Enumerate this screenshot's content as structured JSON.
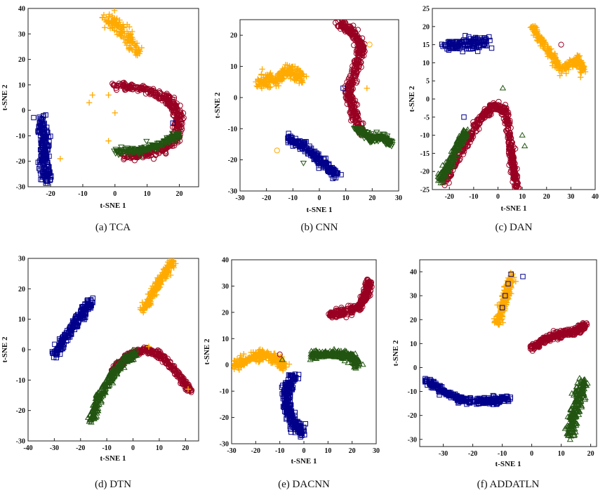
{
  "colors": {
    "class1": "#00008b",
    "class2": "#ffaa00",
    "class3": "#990022",
    "class4": "#225511"
  },
  "chart_data": [
    {
      "type": "scatter",
      "caption": "(a) TCA",
      "xlabel": "t-SNE 1",
      "ylabel": "t-SNE 2",
      "xlim": [
        -27,
        26
      ],
      "ylim": [
        -30,
        40
      ],
      "xticks": [
        -20,
        -10,
        0,
        10,
        20
      ],
      "yticks": [
        -30,
        -20,
        -10,
        0,
        10,
        20,
        30,
        40
      ],
      "series": [
        {
          "name": "class1",
          "marker": "square",
          "color_key": "class1",
          "path": [
            [
              -23,
              -3
            ],
            [
              -22,
              -12
            ],
            [
              -22,
              -20
            ],
            [
              -21,
              -28
            ]
          ],
          "spread": 1.5
        },
        {
          "name": "class2",
          "marker": "plus",
          "color_key": "class2",
          "path": [
            [
              -2,
              36
            ],
            [
              2,
              32
            ],
            [
              7,
              22
            ]
          ],
          "spread": 2.2
        },
        {
          "name": "class3",
          "marker": "circle",
          "color_key": "class3",
          "path": [
            [
              0,
              10
            ],
            [
              10,
              8
            ],
            [
              17,
              4
            ],
            [
              20,
              -3
            ],
            [
              19,
              -12
            ],
            [
              12,
              -17
            ],
            [
              3,
              -18
            ]
          ],
          "spread": 1.3
        },
        {
          "name": "class4",
          "marker": "triangle-down",
          "color_key": "class4",
          "path": [
            [
              0,
              -16
            ],
            [
              8,
              -16
            ],
            [
              15,
              -13
            ],
            [
              20,
              -9
            ]
          ],
          "spread": 1.0
        }
      ],
      "outliers": [
        {
          "marker": "plus",
          "color_key": "class2",
          "x": -7,
          "y": 6
        },
        {
          "marker": "plus",
          "color_key": "class2",
          "x": -8,
          "y": 3
        },
        {
          "marker": "plus",
          "color_key": "class2",
          "x": -2,
          "y": 6
        },
        {
          "marker": "plus",
          "color_key": "class2",
          "x": 0,
          "y": -1
        },
        {
          "marker": "plus",
          "color_key": "class2",
          "x": -2,
          "y": -12
        },
        {
          "marker": "plus",
          "color_key": "class2",
          "x": -17,
          "y": -19
        },
        {
          "marker": "square",
          "color_key": "class1",
          "x": 18,
          "y": -5
        },
        {
          "marker": "circle",
          "color_key": "class3",
          "x": 17,
          "y": 5
        },
        {
          "marker": "triangle-down",
          "color_key": "class4",
          "x": 8,
          "y": -18
        }
      ]
    },
    {
      "type": "scatter",
      "caption": "(b) CNN",
      "xlabel": "t-SNE 1",
      "ylabel": "t-SNE 2",
      "xlim": [
        -30,
        30
      ],
      "ylim": [
        -30,
        25
      ],
      "xticks": [
        -30,
        -20,
        -10,
        0,
        10,
        20,
        30
      ],
      "yticks": [
        -30,
        -20,
        -10,
        0,
        10,
        20
      ],
      "series": [
        {
          "name": "class2",
          "marker": "plus",
          "color_key": "class2",
          "path": [
            [
              -23,
              5
            ],
            [
              -17,
              6
            ],
            [
              -11,
              9
            ],
            [
              -7,
              6
            ]
          ],
          "spread": 2.0
        },
        {
          "name": "class3",
          "marker": "circle",
          "color_key": "class3",
          "path": [
            [
              7,
              24
            ],
            [
              13,
              21
            ],
            [
              16,
              16
            ],
            [
              14,
              10
            ],
            [
              11,
              2
            ],
            [
              13,
              -5
            ],
            [
              16,
              -11
            ]
          ],
          "spread": 1.3
        },
        {
          "name": "class4",
          "marker": "triangle-down",
          "color_key": "class4",
          "path": [
            [
              14,
              -10
            ],
            [
              19,
              -13
            ],
            [
              24,
              -13
            ],
            [
              27,
              -15
            ]
          ],
          "spread": 1.0
        },
        {
          "name": "class1",
          "marker": "square",
          "color_key": "class1",
          "path": [
            [
              -12,
              -13
            ],
            [
              -5,
              -16
            ],
            [
              1,
              -21
            ],
            [
              7,
              -25
            ]
          ],
          "spread": 1.3
        }
      ],
      "outliers": [
        {
          "marker": "circle",
          "color_key": "class2",
          "x": -16,
          "y": -17
        },
        {
          "marker": "triangle-down",
          "color_key": "class4",
          "x": -6,
          "y": -21
        },
        {
          "marker": "plus",
          "color_key": "class2",
          "x": 18,
          "y": 3
        },
        {
          "marker": "circle",
          "color_key": "class2",
          "x": 19,
          "y": 17
        },
        {
          "marker": "square",
          "color_key": "class1",
          "x": 9,
          "y": 3
        }
      ]
    },
    {
      "type": "scatter",
      "caption": "(c) DAN",
      "xlabel": "t-SNE 1",
      "ylabel": "t-SNE 2",
      "xlim": [
        -27,
        40
      ],
      "ylim": [
        -25,
        25
      ],
      "xticks": [
        -20,
        -10,
        0,
        10,
        20,
        30,
        40
      ],
      "yticks": [
        -25,
        -20,
        -15,
        -10,
        -5,
        0,
        5,
        10,
        15,
        20,
        25
      ],
      "series": [
        {
          "name": "class1",
          "marker": "square",
          "color_key": "class1",
          "path": [
            [
              -22,
              15
            ],
            [
              -13,
              15
            ],
            [
              -4,
              16
            ]
          ],
          "spread": 1.6
        },
        {
          "name": "class2",
          "marker": "plus",
          "color_key": "class2",
          "path": [
            [
              14,
              20
            ],
            [
              20,
              14
            ],
            [
              26,
              8
            ],
            [
              33,
              11
            ],
            [
              35,
              8
            ]
          ],
          "spread": 1.0
        },
        {
          "name": "class3",
          "marker": "circle",
          "color_key": "class3",
          "path": [
            [
              -22,
              -23
            ],
            [
              -13,
              -12
            ],
            [
              -7,
              -5
            ],
            [
              -2,
              -2
            ],
            [
              3,
              -3
            ],
            [
              5,
              -12
            ],
            [
              6,
              -18
            ],
            [
              8,
              -24
            ]
          ],
          "spread": 1.0
        },
        {
          "name": "class4",
          "marker": "triangle-up",
          "color_key": "class4",
          "path": [
            [
              -24,
              -23
            ],
            [
              -20,
              -18
            ],
            [
              -16,
              -12
            ],
            [
              -13,
              -9
            ]
          ],
          "spread": 1.1
        }
      ],
      "outliers": [
        {
          "marker": "circle",
          "color_key": "class3",
          "x": 26,
          "y": 15
        },
        {
          "marker": "triangle-up",
          "color_key": "class4",
          "x": 2,
          "y": 3
        },
        {
          "marker": "triangle-up",
          "color_key": "class4",
          "x": 10,
          "y": -10
        },
        {
          "marker": "triangle-up",
          "color_key": "class4",
          "x": 11,
          "y": -13
        },
        {
          "marker": "square",
          "color_key": "class1",
          "x": -14,
          "y": -5
        },
        {
          "marker": "plus",
          "color_key": "class2",
          "x": 34,
          "y": 6
        }
      ]
    },
    {
      "type": "scatter",
      "caption": "(d) DTN",
      "xlabel": "t-SNE 1",
      "ylabel": "t-SNE 2",
      "xlim": [
        -40,
        25
      ],
      "ylim": [
        -30,
        30
      ],
      "xticks": [
        -40,
        -30,
        -20,
        -10,
        0,
        10,
        20
      ],
      "yticks": [
        -30,
        -20,
        -10,
        0,
        10,
        20,
        30
      ],
      "series": [
        {
          "name": "class1",
          "marker": "square",
          "color_key": "class1",
          "path": [
            [
              -30,
              -2
            ],
            [
              -25,
              5
            ],
            [
              -20,
              11
            ],
            [
              -16,
              16
            ]
          ],
          "spread": 1.3
        },
        {
          "name": "class2",
          "marker": "plus",
          "color_key": "class2",
          "path": [
            [
              4,
              13
            ],
            [
              8,
              19
            ],
            [
              12,
              25
            ],
            [
              15,
              29
            ]
          ],
          "spread": 1.3
        },
        {
          "name": "class3",
          "marker": "circle",
          "color_key": "class3",
          "path": [
            [
              -8,
              -7
            ],
            [
              -2,
              -2
            ],
            [
              5,
              0
            ],
            [
              11,
              -2
            ],
            [
              17,
              -8
            ],
            [
              22,
              -14
            ]
          ],
          "spread": 0.9
        },
        {
          "name": "class4",
          "marker": "triangle-up",
          "color_key": "class4",
          "path": [
            [
              -16,
              -23
            ],
            [
              -13,
              -16
            ],
            [
              -9,
              -10
            ],
            [
              -4,
              -4
            ],
            [
              1,
              -1
            ]
          ],
          "spread": 1.2
        }
      ],
      "outliers": [
        {
          "marker": "plus",
          "color_key": "class2",
          "x": 6,
          "y": 1
        },
        {
          "marker": "plus",
          "color_key": "class2",
          "x": 21,
          "y": -13
        }
      ]
    },
    {
      "type": "scatter",
      "caption": "(e) DACNN",
      "xlabel": "t-SNE 1",
      "ylabel": "t-SNE 2",
      "xlim": [
        -30,
        30
      ],
      "ylim": [
        -30,
        40
      ],
      "xticks": [
        -30,
        -20,
        -10,
        0,
        10,
        20,
        30
      ],
      "yticks": [
        -30,
        -20,
        -10,
        0,
        10,
        20,
        30,
        40
      ],
      "series": [
        {
          "name": "class2",
          "marker": "plus",
          "color_key": "class2",
          "path": [
            [
              -29,
              0
            ],
            [
              -23,
              2
            ],
            [
              -17,
              4
            ],
            [
              -11,
              2
            ],
            [
              -8,
              -1
            ]
          ],
          "spread": 1.7
        },
        {
          "name": "class3",
          "marker": "circle",
          "color_key": "class3",
          "path": [
            [
              10,
              19
            ],
            [
              17,
              20
            ],
            [
              23,
              22
            ],
            [
              26,
              27
            ],
            [
              27,
              32
            ]
          ],
          "spread": 1.3
        },
        {
          "name": "class4",
          "marker": "triangle-up",
          "color_key": "class4",
          "path": [
            [
              3,
              4
            ],
            [
              9,
              4
            ],
            [
              15,
              4
            ],
            [
              20,
              3
            ],
            [
              22,
              0
            ]
          ],
          "spread": 1.4
        },
        {
          "name": "class1",
          "marker": "square",
          "color_key": "class1",
          "path": [
            [
              -4,
              -4
            ],
            [
              -7,
              -10
            ],
            [
              -7,
              -16
            ],
            [
              -4,
              -22
            ],
            [
              -1,
              -26
            ]
          ],
          "spread": 1.6
        }
      ],
      "outliers": [
        {
          "marker": "circle",
          "color_key": "class3",
          "x": -10,
          "y": 4
        },
        {
          "marker": "triangle-up",
          "color_key": "class4",
          "x": -9,
          "y": 2
        },
        {
          "marker": "square",
          "color_key": "class1",
          "x": -9,
          "y": -11
        }
      ]
    },
    {
      "type": "scatter",
      "caption": "(f) ADDATLN",
      "xlabel": "t-SNE 1",
      "ylabel": "t-SNE 2",
      "xlim": [
        -38,
        22
      ],
      "ylim": [
        -33,
        45
      ],
      "xticks": [
        -30,
        -20,
        -10,
        0,
        10,
        20
      ],
      "yticks": [
        -30,
        -20,
        -10,
        0,
        10,
        20,
        30,
        40
      ],
      "series": [
        {
          "name": "class2",
          "marker": "plus",
          "color_key": "class2",
          "path": [
            [
              -12,
              18
            ],
            [
              -10,
              25
            ],
            [
              -8,
              32
            ],
            [
              -7,
              38
            ]
          ],
          "spread": 1.2
        },
        {
          "name": "class3",
          "marker": "circle",
          "color_key": "class3",
          "path": [
            [
              0,
              8
            ],
            [
              5,
              12
            ],
            [
              10,
              14
            ],
            [
              15,
              15
            ],
            [
              18,
              18
            ]
          ],
          "spread": 1.2
        },
        {
          "name": "class1",
          "marker": "square",
          "color_key": "class1",
          "path": [
            [
              -36,
              -5
            ],
            [
              -30,
              -10
            ],
            [
              -22,
              -14
            ],
            [
              -14,
              -14
            ],
            [
              -8,
              -13
            ]
          ],
          "spread": 1.2
        },
        {
          "name": "class4",
          "marker": "triangle-up",
          "color_key": "class4",
          "path": [
            [
              13,
              -29
            ],
            [
              14,
              -20
            ],
            [
              16,
              -12
            ],
            [
              18,
              -5
            ]
          ],
          "spread": 1.5
        }
      ],
      "outliers": [
        {
          "marker": "square",
          "color_key": "class1",
          "x": -8,
          "y": 35
        },
        {
          "marker": "square",
          "color_key": "class1",
          "x": -9,
          "y": 30
        },
        {
          "marker": "square",
          "color_key": "class1",
          "x": -10,
          "y": 25
        },
        {
          "marker": "square",
          "color_key": "class1",
          "x": -3,
          "y": 38
        },
        {
          "marker": "square",
          "color_key": "class1",
          "x": -7,
          "y": 39
        }
      ]
    }
  ]
}
